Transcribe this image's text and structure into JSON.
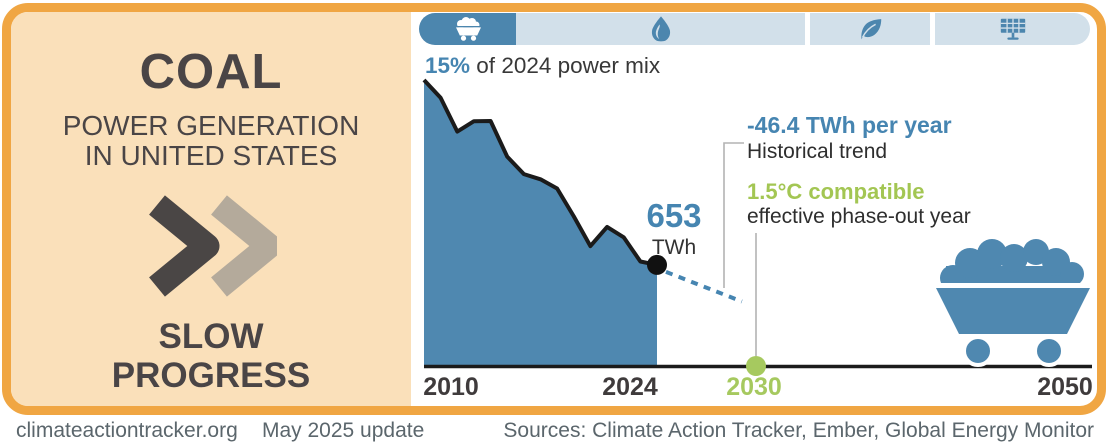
{
  "left_panel": {
    "title": "COAL",
    "subtitle_line1": "POWER GENERATION",
    "subtitle_line2": "IN UNITED STATES",
    "rating_line1": "SLOW",
    "rating_line2": "PROGRESS"
  },
  "tabs": [
    {
      "id": "coal",
      "icon": "coal-cart-icon",
      "active": true
    },
    {
      "id": "gas",
      "icon": "flame-icon",
      "active": false
    },
    {
      "id": "renewables",
      "icon": "leaf-icon",
      "active": false
    },
    {
      "id": "solar",
      "icon": "solar-panel-icon",
      "active": false
    }
  ],
  "stat": {
    "value": "15%",
    "suffix": " of 2024 power mix"
  },
  "endpoint_label": {
    "value": "653",
    "unit": "TWh"
  },
  "annotations": {
    "trend_value": "-46.4 TWh per year",
    "trend_label": "Historical trend",
    "compatible_value": "1.5°C compatible",
    "compatible_label": "effective phase-out year"
  },
  "x_axis": {
    "start": "2010",
    "hist_end": "2024",
    "phase_out": "2030",
    "end": "2050"
  },
  "footer": {
    "site": "climateactiontracker.org",
    "update": "May 2025 update",
    "sources": "Sources: Climate Action Tracker, Ember, Global Energy Monitor"
  },
  "colors": {
    "orange_border": "#F0A643",
    "peach_panel": "#FAE0BA",
    "accent_blue": "#4685B1",
    "area_fill_blue": "#4F88B0",
    "active_tab_blue": "#4C86AE",
    "inactive_tab": "#D2E0EA",
    "green": "#A6C95F",
    "dark_text": "#4A4546"
  },
  "chart_data": {
    "type": "area",
    "title": "Coal power generation in United States",
    "unit": "TWh",
    "x": [
      2010,
      2011,
      2012,
      2013,
      2014,
      2015,
      2016,
      2017,
      2018,
      2019,
      2020,
      2021,
      2022,
      2023,
      2024
    ],
    "values": [
      1847,
      1733,
      1514,
      1581,
      1582,
      1352,
      1239,
      1206,
      1146,
      966,
      774,
      898,
      831,
      675,
      653
    ],
    "xlim": [
      2010,
      2050
    ],
    "ylim": [
      0,
      1900
    ],
    "grid": false,
    "legend": false,
    "endpoint": {
      "year": 2024,
      "value": 653
    },
    "trend_twh_per_year": -46.4,
    "trend_projection_end_year": 2029,
    "phase_out_year": 2030,
    "share_of_2024_power_mix_percent": 15
  }
}
